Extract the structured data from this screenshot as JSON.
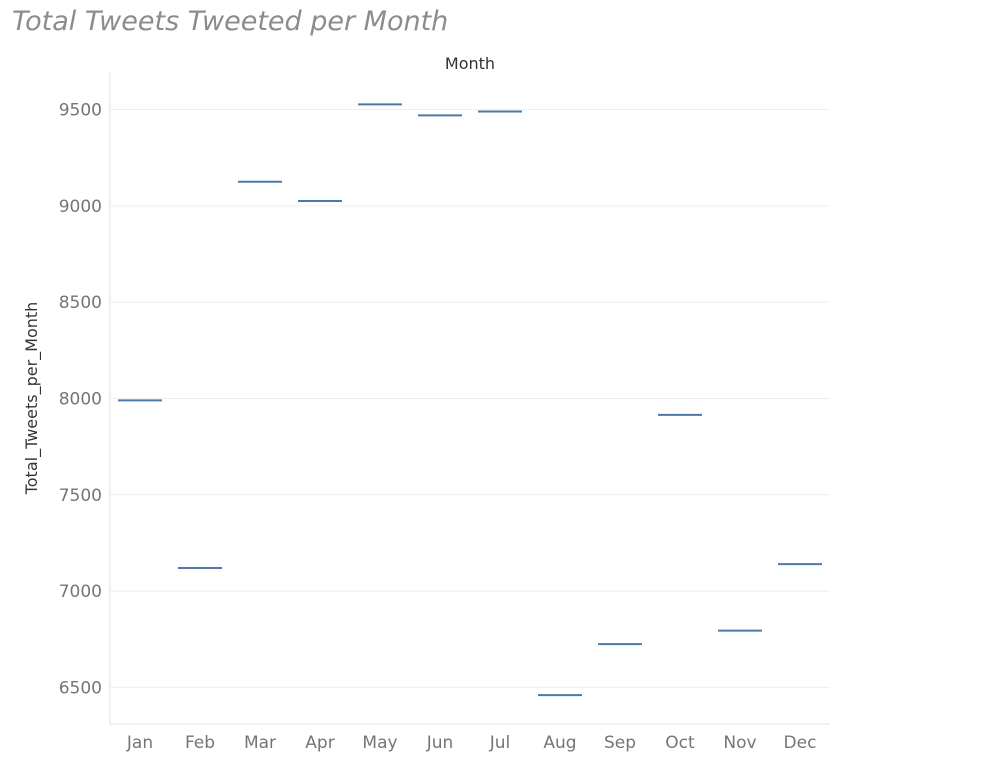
{
  "title": "Total Tweets Tweeted per Month",
  "chart_data": {
    "type": "line",
    "mark_style": "horizontal-tick",
    "title": "Total Tweets Tweeted per Month",
    "column_header": "Month",
    "xlabel": "",
    "ylabel": "Total_Tweets_per_Month",
    "categories": [
      "Jan",
      "Feb",
      "Mar",
      "Apr",
      "May",
      "Jun",
      "Jul",
      "Aug",
      "Sep",
      "Oct",
      "Nov",
      "Dec"
    ],
    "values": [
      7990,
      7120,
      9125,
      9025,
      9527,
      9470,
      9490,
      6460,
      6725,
      7915,
      6795,
      7140
    ],
    "ylim": [
      6310,
      9695
    ],
    "yticks": [
      6500,
      7000,
      7500,
      8000,
      8500,
      9000,
      9500
    ],
    "grid": true,
    "legend": "none",
    "color": "#4e79a7"
  }
}
